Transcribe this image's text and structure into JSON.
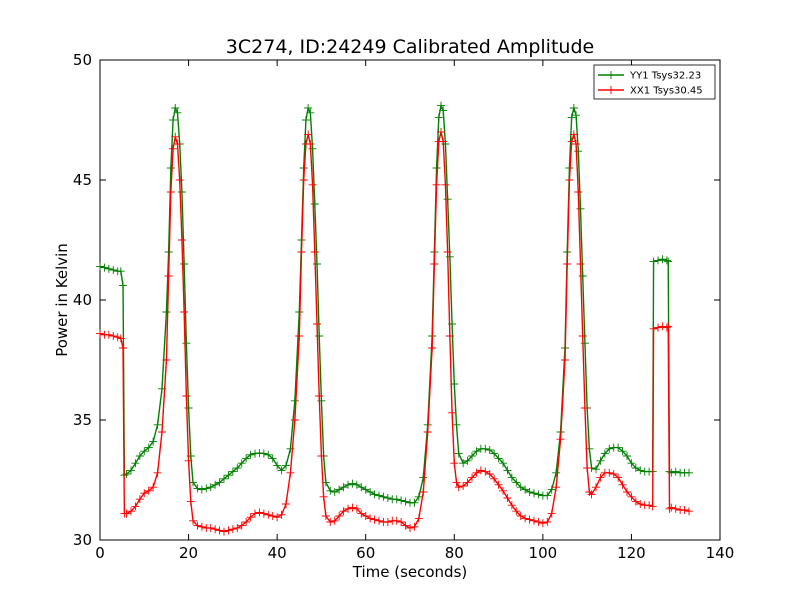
{
  "chart_data": {
    "type": "line",
    "title": "3C274, ID:24249 Calibrated Amplitude",
    "xlabel": "Time (seconds)",
    "ylabel": "Power in Kelvin",
    "xlim": [
      0,
      140
    ],
    "ylim": [
      30,
      50
    ],
    "xticks": [
      "0",
      "20",
      "40",
      "60",
      "80",
      "100",
      "120",
      "140"
    ],
    "yticks": [
      "30",
      "35",
      "40",
      "45",
      "50"
    ],
    "grid": false,
    "legend_position": "top-right",
    "marker": "plus",
    "series": [
      {
        "name": "YY1 Tsys32.23",
        "color": "#008000",
        "points": [
          [
            0,
            41.4
          ],
          [
            1,
            41.35
          ],
          [
            2,
            41.3
          ],
          [
            3,
            41.25
          ],
          [
            4,
            41.2
          ],
          [
            4.7,
            41.2
          ],
          [
            5.2,
            40.6
          ],
          [
            5.5,
            32.7
          ],
          [
            6,
            32.75
          ],
          [
            7,
            32.9
          ],
          [
            8,
            33.2
          ],
          [
            9,
            33.5
          ],
          [
            10,
            33.7
          ],
          [
            11,
            33.85
          ],
          [
            12,
            34.1
          ],
          [
            13,
            34.8
          ],
          [
            14,
            36.3
          ],
          [
            15,
            39.5
          ],
          [
            15.5,
            42.0
          ],
          [
            16,
            45.5
          ],
          [
            16.5,
            47.5
          ],
          [
            17,
            48.0
          ],
          [
            17.5,
            47.8
          ],
          [
            18,
            46.5
          ],
          [
            18.5,
            44.5
          ],
          [
            19,
            41.5
          ],
          [
            19.5,
            38.2
          ],
          [
            20,
            35.5
          ],
          [
            20.5,
            33.5
          ],
          [
            21,
            32.4
          ],
          [
            22,
            32.15
          ],
          [
            23,
            32.1
          ],
          [
            24,
            32.15
          ],
          [
            25,
            32.2
          ],
          [
            26,
            32.3
          ],
          [
            27,
            32.4
          ],
          [
            28,
            32.55
          ],
          [
            29,
            32.7
          ],
          [
            30,
            32.85
          ],
          [
            31,
            33.0
          ],
          [
            32,
            33.2
          ],
          [
            33,
            33.4
          ],
          [
            34,
            33.55
          ],
          [
            35,
            33.6
          ],
          [
            36,
            33.62
          ],
          [
            37,
            33.6
          ],
          [
            38,
            33.55
          ],
          [
            39,
            33.4
          ],
          [
            40,
            33.1
          ],
          [
            41,
            32.9
          ],
          [
            42,
            33.1
          ],
          [
            43,
            33.8
          ],
          [
            44,
            35.8
          ],
          [
            45,
            39.5
          ],
          [
            45.5,
            42.5
          ],
          [
            46,
            45.5
          ],
          [
            46.5,
            47.5
          ],
          [
            47,
            48.0
          ],
          [
            47.5,
            47.8
          ],
          [
            48,
            46.3
          ],
          [
            48.5,
            44.0
          ],
          [
            49,
            41.5
          ],
          [
            49.5,
            38.5
          ],
          [
            50,
            35.8
          ],
          [
            50.5,
            33.5
          ],
          [
            51,
            32.4
          ],
          [
            52,
            32.05
          ],
          [
            53,
            32.0
          ],
          [
            54,
            32.1
          ],
          [
            55,
            32.2
          ],
          [
            56,
            32.3
          ],
          [
            57,
            32.35
          ],
          [
            58,
            32.3
          ],
          [
            59,
            32.2
          ],
          [
            60,
            32.1
          ],
          [
            61,
            32.0
          ],
          [
            62,
            31.9
          ],
          [
            63,
            31.85
          ],
          [
            64,
            31.8
          ],
          [
            65,
            31.75
          ],
          [
            66,
            31.7
          ],
          [
            67,
            31.7
          ],
          [
            68,
            31.65
          ],
          [
            69,
            31.6
          ],
          [
            70,
            31.55
          ],
          [
            71,
            31.55
          ],
          [
            72,
            31.8
          ],
          [
            73,
            32.6
          ],
          [
            74,
            34.8
          ],
          [
            75,
            38.5
          ],
          [
            75.5,
            42.0
          ],
          [
            76,
            45.5
          ],
          [
            76.5,
            47.6
          ],
          [
            77,
            48.1
          ],
          [
            77.5,
            47.9
          ],
          [
            78,
            46.5
          ],
          [
            78.5,
            44.2
          ],
          [
            79,
            41.8
          ],
          [
            79.5,
            39.0
          ],
          [
            80,
            36.5
          ],
          [
            80.5,
            34.8
          ],
          [
            81,
            33.6
          ],
          [
            82,
            33.2
          ],
          [
            83,
            33.3
          ],
          [
            84,
            33.5
          ],
          [
            85,
            33.7
          ],
          [
            86,
            33.8
          ],
          [
            87,
            33.8
          ],
          [
            88,
            33.75
          ],
          [
            89,
            33.6
          ],
          [
            90,
            33.4
          ],
          [
            91,
            33.2
          ],
          [
            92,
            32.9
          ],
          [
            93,
            32.6
          ],
          [
            94,
            32.4
          ],
          [
            95,
            32.2
          ],
          [
            96,
            32.1
          ],
          [
            97,
            32.0
          ],
          [
            98,
            31.95
          ],
          [
            99,
            31.9
          ],
          [
            100,
            31.85
          ],
          [
            101,
            31.85
          ],
          [
            102,
            32.1
          ],
          [
            103,
            32.8
          ],
          [
            104,
            34.5
          ],
          [
            105,
            38.0
          ],
          [
            105.5,
            42.0
          ],
          [
            106,
            45.5
          ],
          [
            106.5,
            47.6
          ],
          [
            107,
            48.0
          ],
          [
            107.5,
            47.7
          ],
          [
            108,
            46.2
          ],
          [
            108.5,
            43.8
          ],
          [
            109,
            41.0
          ],
          [
            109.5,
            38.2
          ],
          [
            110,
            35.5
          ],
          [
            110.5,
            33.8
          ],
          [
            111,
            33.0
          ],
          [
            112,
            32.95
          ],
          [
            113,
            33.3
          ],
          [
            114,
            33.6
          ],
          [
            115,
            33.8
          ],
          [
            116,
            33.85
          ],
          [
            117,
            33.85
          ],
          [
            118,
            33.7
          ],
          [
            119,
            33.5
          ],
          [
            120,
            33.2
          ],
          [
            121,
            33.0
          ],
          [
            122,
            32.9
          ],
          [
            123,
            32.85
          ],
          [
            124,
            32.85
          ],
          [
            124.8,
            32.85
          ],
          [
            125,
            41.6
          ],
          [
            126,
            41.65
          ],
          [
            127,
            41.7
          ],
          [
            128,
            41.65
          ],
          [
            128.3,
            41.6
          ],
          [
            128.6,
            32.85
          ],
          [
            129,
            32.8
          ],
          [
            130,
            32.85
          ],
          [
            131,
            32.8
          ],
          [
            132,
            32.8
          ],
          [
            133,
            32.8
          ]
        ]
      },
      {
        "name": "XX1 Tsys30.45",
        "color": "#ff0000",
        "points": [
          [
            0,
            38.6
          ],
          [
            1,
            38.55
          ],
          [
            2,
            38.55
          ],
          [
            3,
            38.5
          ],
          [
            4,
            38.45
          ],
          [
            4.7,
            38.4
          ],
          [
            5.2,
            38.0
          ],
          [
            5.5,
            31.1
          ],
          [
            6,
            31.1
          ],
          [
            7,
            31.2
          ],
          [
            8,
            31.4
          ],
          [
            9,
            31.7
          ],
          [
            10,
            31.95
          ],
          [
            11,
            32.05
          ],
          [
            12,
            32.2
          ],
          [
            13,
            32.8
          ],
          [
            14,
            34.5
          ],
          [
            15,
            37.5
          ],
          [
            15.5,
            41.0
          ],
          [
            16,
            44.5
          ],
          [
            16.5,
            46.3
          ],
          [
            17,
            46.8
          ],
          [
            17.5,
            46.5
          ],
          [
            18,
            45.0
          ],
          [
            18.5,
            42.5
          ],
          [
            19,
            39.5
          ],
          [
            19.5,
            36.0
          ],
          [
            20,
            33.3
          ],
          [
            20.5,
            31.6
          ],
          [
            21,
            30.8
          ],
          [
            22,
            30.6
          ],
          [
            23,
            30.55
          ],
          [
            24,
            30.5
          ],
          [
            25,
            30.5
          ],
          [
            26,
            30.45
          ],
          [
            27,
            30.4
          ],
          [
            28,
            30.35
          ],
          [
            29,
            30.4
          ],
          [
            30,
            30.45
          ],
          [
            31,
            30.5
          ],
          [
            32,
            30.6
          ],
          [
            33,
            30.75
          ],
          [
            34,
            30.95
          ],
          [
            35,
            31.1
          ],
          [
            36,
            31.15
          ],
          [
            37,
            31.1
          ],
          [
            38,
            31.05
          ],
          [
            39,
            31.0
          ],
          [
            40,
            30.95
          ],
          [
            41,
            31.05
          ],
          [
            42,
            31.5
          ],
          [
            43,
            32.8
          ],
          [
            44,
            35.0
          ],
          [
            45,
            38.5
          ],
          [
            45.5,
            42.0
          ],
          [
            46,
            45.0
          ],
          [
            46.5,
            46.5
          ],
          [
            47,
            46.9
          ],
          [
            47.5,
            46.5
          ],
          [
            48,
            44.8
          ],
          [
            48.5,
            42.0
          ],
          [
            49,
            39.0
          ],
          [
            49.5,
            36.0
          ],
          [
            50,
            33.5
          ],
          [
            50.5,
            31.8
          ],
          [
            51,
            31.0
          ],
          [
            52,
            30.75
          ],
          [
            53,
            30.8
          ],
          [
            54,
            31.0
          ],
          [
            55,
            31.2
          ],
          [
            56,
            31.3
          ],
          [
            57,
            31.35
          ],
          [
            58,
            31.3
          ],
          [
            59,
            31.1
          ],
          [
            60,
            31.0
          ],
          [
            61,
            30.9
          ],
          [
            62,
            30.85
          ],
          [
            63,
            30.8
          ],
          [
            64,
            30.75
          ],
          [
            65,
            30.75
          ],
          [
            66,
            30.8
          ],
          [
            67,
            30.8
          ],
          [
            68,
            30.75
          ],
          [
            69,
            30.6
          ],
          [
            70,
            30.5
          ],
          [
            71,
            30.55
          ],
          [
            72,
            30.9
          ],
          [
            73,
            32.0
          ],
          [
            74,
            34.5
          ],
          [
            75,
            38.0
          ],
          [
            75.5,
            41.5
          ],
          [
            76,
            44.8
          ],
          [
            76.5,
            46.6
          ],
          [
            77,
            47.0
          ],
          [
            77.5,
            46.6
          ],
          [
            78,
            44.8
          ],
          [
            78.5,
            42.0
          ],
          [
            79,
            38.5
          ],
          [
            79.5,
            35.3
          ],
          [
            80,
            33.2
          ],
          [
            80.5,
            32.4
          ],
          [
            81,
            32.2
          ],
          [
            82,
            32.25
          ],
          [
            83,
            32.4
          ],
          [
            84,
            32.6
          ],
          [
            85,
            32.8
          ],
          [
            86,
            32.9
          ],
          [
            87,
            32.85
          ],
          [
            88,
            32.75
          ],
          [
            89,
            32.55
          ],
          [
            90,
            32.3
          ],
          [
            91,
            32.05
          ],
          [
            92,
            31.75
          ],
          [
            93,
            31.45
          ],
          [
            94,
            31.2
          ],
          [
            95,
            31.0
          ],
          [
            96,
            30.9
          ],
          [
            97,
            30.85
          ],
          [
            98,
            30.8
          ],
          [
            99,
            30.75
          ],
          [
            100,
            30.7
          ],
          [
            101,
            30.75
          ],
          [
            102,
            31.1
          ],
          [
            103,
            32.2
          ],
          [
            104,
            34.2
          ],
          [
            105,
            37.5
          ],
          [
            105.5,
            41.5
          ],
          [
            106,
            45.0
          ],
          [
            106.5,
            46.6
          ],
          [
            107,
            46.9
          ],
          [
            107.5,
            46.5
          ],
          [
            108,
            44.5
          ],
          [
            108.5,
            41.5
          ],
          [
            109,
            38.5
          ],
          [
            109.5,
            35.5
          ],
          [
            110,
            33.0
          ],
          [
            110.5,
            32.0
          ],
          [
            111,
            31.9
          ],
          [
            112,
            32.2
          ],
          [
            113,
            32.6
          ],
          [
            114,
            32.8
          ],
          [
            115,
            32.8
          ],
          [
            116,
            32.75
          ],
          [
            117,
            32.6
          ],
          [
            118,
            32.3
          ],
          [
            119,
            32.0
          ],
          [
            120,
            31.8
          ],
          [
            121,
            31.6
          ],
          [
            122,
            31.5
          ],
          [
            123,
            31.45
          ],
          [
            124,
            31.45
          ],
          [
            124.8,
            31.4
          ],
          [
            125,
            38.8
          ],
          [
            126,
            38.85
          ],
          [
            127,
            38.9
          ],
          [
            128,
            38.85
          ],
          [
            128.3,
            38.9
          ],
          [
            128.6,
            31.3
          ],
          [
            129,
            31.35
          ],
          [
            130,
            31.3
          ],
          [
            131,
            31.25
          ],
          [
            132,
            31.25
          ],
          [
            133,
            31.2
          ]
        ]
      }
    ]
  }
}
